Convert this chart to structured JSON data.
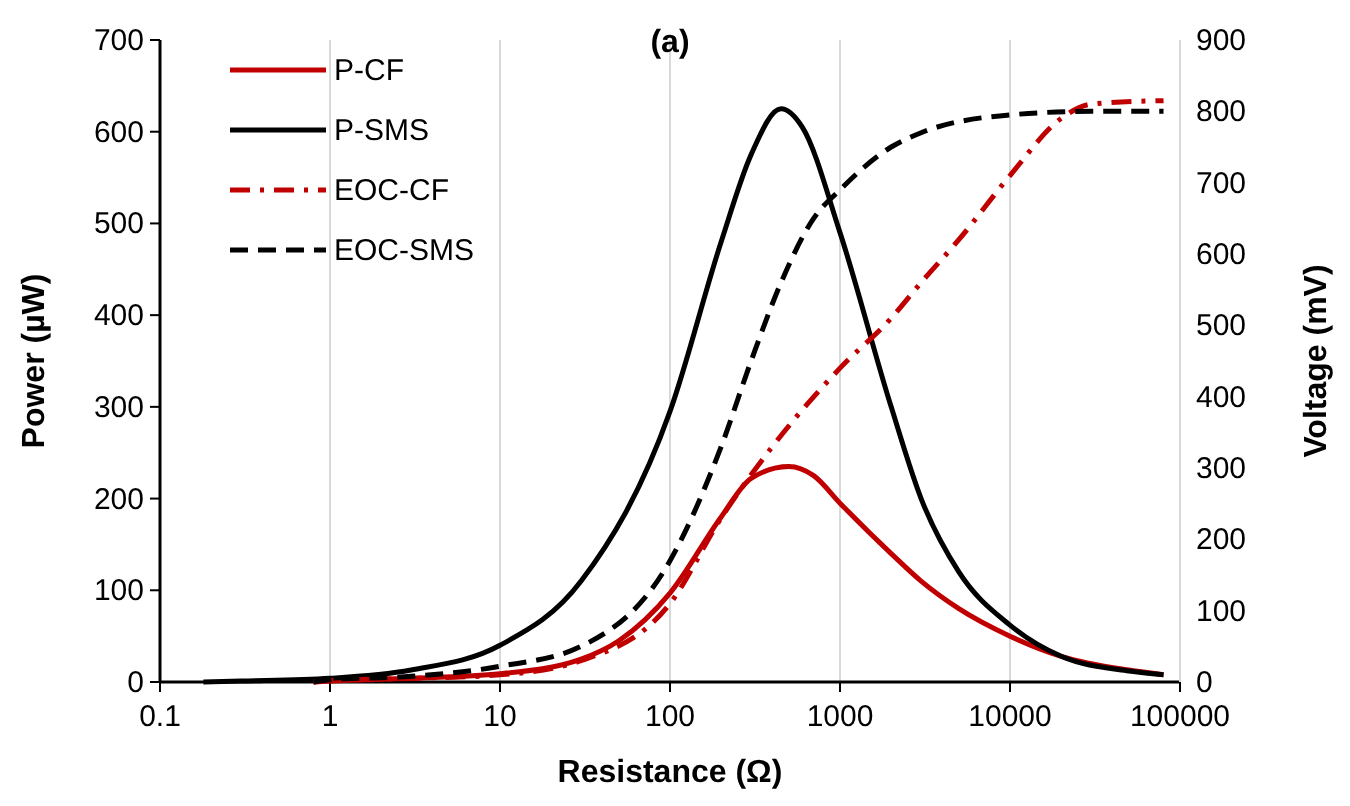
{
  "chart_data": {
    "type": "line",
    "title": "(a)",
    "xlabel": "Resistance (Ω)",
    "ylabel": "Power (µW)",
    "y2label": "Voltage (mV)",
    "log": "x",
    "grid": "x",
    "legend": "top left",
    "xlim": [
      0.1,
      100000
    ],
    "xticks": [
      0.1,
      1,
      10,
      100,
      1000,
      10000,
      100000
    ],
    "ylim": [
      0,
      700
    ],
    "yticks": [
      0,
      100,
      200,
      300,
      400,
      500,
      600,
      700
    ],
    "y2lim": [
      0,
      900
    ],
    "y2ticks": [
      0,
      100,
      200,
      300,
      400,
      500,
      600,
      700,
      800,
      900
    ],
    "series": [
      {
        "name": "P-CF",
        "color": "#c00000",
        "line_style": "solid",
        "x": [
          0.8,
          1,
          3,
          10,
          30,
          50,
          100,
          200,
          300,
          500,
          700,
          1000,
          2000,
          3000,
          5000,
          10000,
          20000,
          50000,
          80000
        ],
        "values": [
          0,
          1,
          4,
          9,
          25,
          45,
          97,
          180,
          222,
          235,
          225,
          195,
          140,
          110,
          80,
          50,
          28,
          13,
          8
        ]
      },
      {
        "name": "P-SMS",
        "color": "#000000",
        "line_style": "solid",
        "x": [
          0.18,
          0.3,
          1,
          3,
          10,
          30,
          100,
          200,
          300,
          450,
          600,
          1000,
          2000,
          3000,
          5000,
          10000,
          20000,
          50000,
          80000
        ],
        "values": [
          0,
          1,
          4,
          13,
          40,
          110,
          295,
          480,
          575,
          625,
          605,
          490,
          300,
          200,
          120,
          62,
          28,
          12,
          8
        ]
      },
      {
        "name": "EOC-CF",
        "color": "#c00000",
        "line_style": "dashdot",
        "axis": "y2",
        "x": [
          0.8,
          1,
          3,
          10,
          30,
          100,
          200,
          400,
          1000,
          2000,
          3000,
          5000,
          10000,
          20000,
          30000,
          80000
        ],
        "values": [
          0,
          2,
          5,
          10,
          30,
          110,
          230,
          330,
          440,
          510,
          560,
          620,
          710,
          790,
          810,
          815
        ]
      },
      {
        "name": "EOC-SMS",
        "color": "#000000",
        "line_style": "dashed",
        "axis": "y2",
        "x": [
          0.8,
          1,
          3,
          10,
          30,
          100,
          200,
          300,
          450,
          700,
          1000,
          2000,
          3000,
          10000,
          30000,
          80000
        ],
        "values": [
          0,
          3,
          8,
          22,
          50,
          170,
          330,
          450,
          560,
          650,
          690,
          750,
          770,
          795,
          800,
          800
        ]
      }
    ]
  }
}
